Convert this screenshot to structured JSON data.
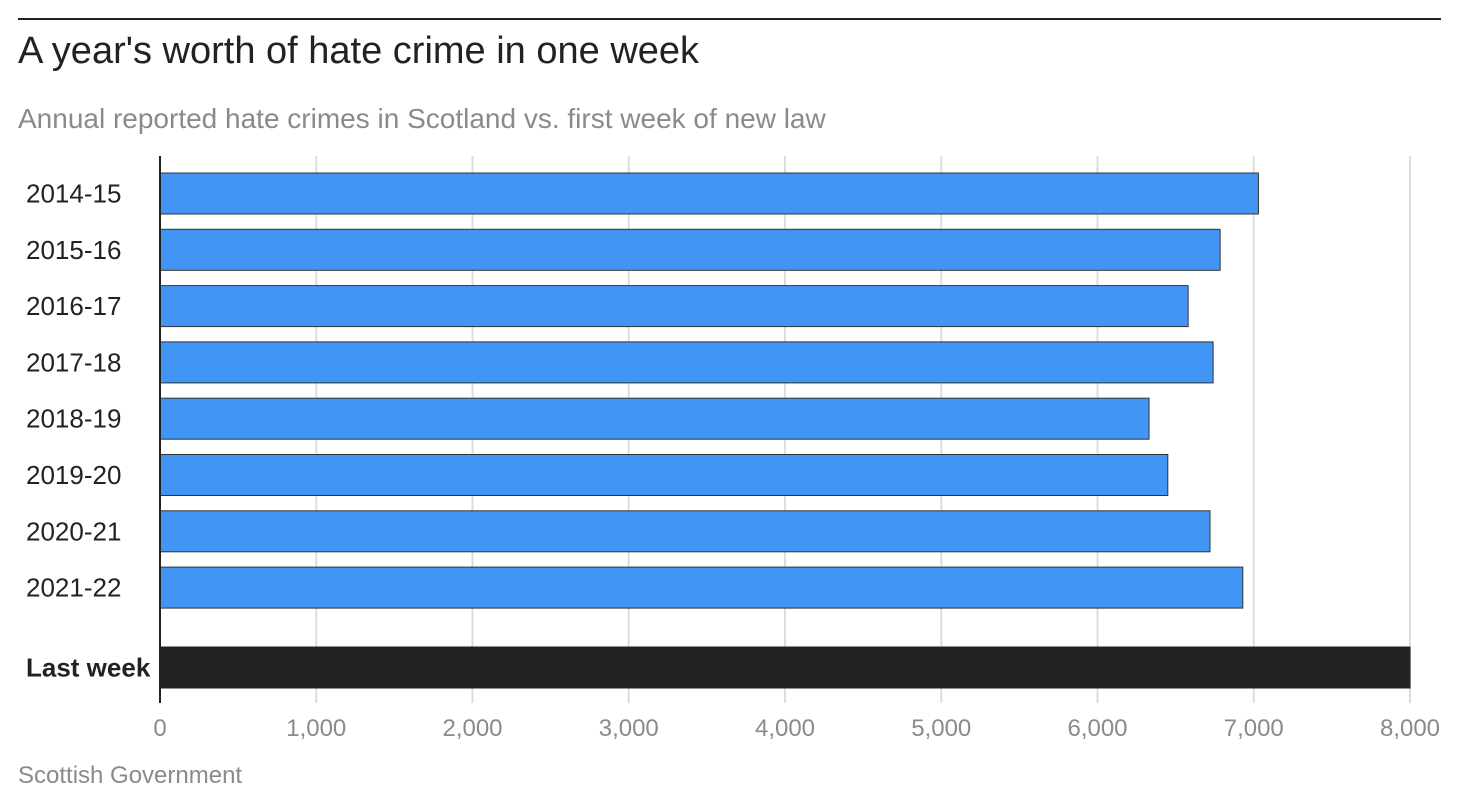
{
  "title": "A year's worth of hate crime in one week",
  "subtitle": "Annual reported hate crimes in Scotland vs. first week of new law",
  "source": "Scottish Government",
  "colors": {
    "bar": "#4196f5",
    "highlight": "#222222",
    "grid": "#dddddd",
    "axis": "#222222",
    "tick_text": "#8a8a8a",
    "label_text": "#222222"
  },
  "chart_data": {
    "type": "bar",
    "orientation": "horizontal",
    "categories": [
      "2014-15",
      "2015-16",
      "2016-17",
      "2017-18",
      "2018-19",
      "2019-20",
      "2020-21",
      "2021-22",
      "Last week"
    ],
    "values": [
      7030,
      6785,
      6580,
      6740,
      6330,
      6450,
      6720,
      6930,
      8000
    ],
    "highlight": [
      "Last week"
    ],
    "xlim": [
      0,
      8000
    ],
    "xticks": [
      0,
      1000,
      2000,
      3000,
      4000,
      5000,
      6000,
      7000,
      8000
    ],
    "xtick_labels": [
      "0",
      "1,000",
      "2,000",
      "3,000",
      "4,000",
      "5,000",
      "6,000",
      "7,000",
      "8,000"
    ],
    "grid": true,
    "xlabel": "",
    "ylabel": ""
  }
}
